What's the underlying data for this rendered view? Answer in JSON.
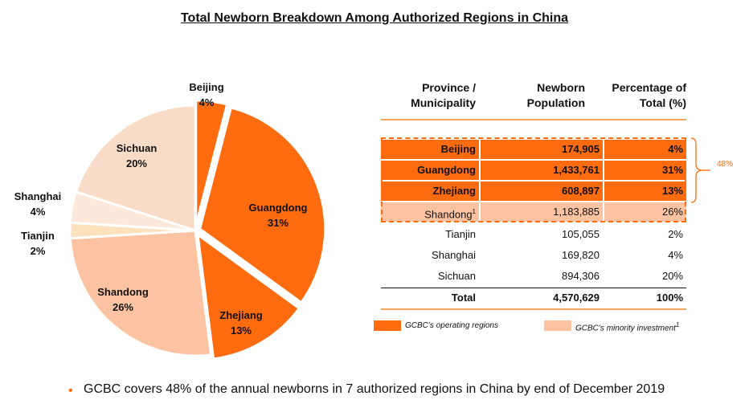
{
  "chart_data": [
    {
      "type": "pie",
      "title": "Total Newborn Breakdown Among Authorized Regions in China",
      "slices": [
        {
          "label": "Beijing",
          "value": 4,
          "value_label": "4%",
          "color": "#ff6b0f",
          "exploded": true
        },
        {
          "label": "Guangdong",
          "value": 31,
          "value_label": "31%",
          "color": "#ff6b0f",
          "exploded": true
        },
        {
          "label": "Zhejiang",
          "value": 13,
          "value_label": "13%",
          "color": "#ff6b0f",
          "exploded": true
        },
        {
          "label": "Shandong",
          "value": 26,
          "value_label": "26%",
          "color": "#fbc3a1",
          "exploded": false
        },
        {
          "label": "Tianjin",
          "value": 2,
          "value_label": "2%",
          "color": "#fbe1bc",
          "exploded": false
        },
        {
          "label": "Shanghai",
          "value": 4,
          "value_label": "4%",
          "color": "#fde9db",
          "exploded": false
        },
        {
          "label": "Sichuan",
          "value": 20,
          "value_label": "20%",
          "color": "#f9dcc8",
          "exploded": false
        }
      ]
    },
    {
      "type": "table",
      "columns": [
        "Province / Municipality",
        "Newborn Population",
        "Percentage of Total (%)"
      ],
      "rows": [
        {
          "region": "Beijing",
          "population": "174,905",
          "pct": "4%",
          "group": "operating"
        },
        {
          "region": "Guangdong",
          "population": "1,433,761",
          "pct": "31%",
          "group": "operating"
        },
        {
          "region": "Zhejiang",
          "population": "608,897",
          "pct": "13%",
          "group": "operating"
        },
        {
          "region": "Shandong",
          "sup": "1",
          "population": "1,183,885",
          "pct": "26%",
          "group": "minority"
        },
        {
          "region": "Tianjin",
          "population": "105,055",
          "pct": "2%",
          "group": "other"
        },
        {
          "region": "Shanghai",
          "population": "169,820",
          "pct": "4%",
          "group": "other"
        },
        {
          "region": "Sichuan",
          "population": "894,306",
          "pct": "20%",
          "group": "other"
        }
      ],
      "total": {
        "label": "Total",
        "population": "4,570,629",
        "pct": "100%"
      },
      "bracket_label": "48%"
    }
  ],
  "table_header": {
    "c1_line1": "Province /",
    "c1_line2": "Municipality",
    "c2_line1": "Newborn",
    "c2_line2": "Population",
    "c3_line1": "Percentage of",
    "c3_line2": "Total (%)"
  },
  "legend": {
    "operating": "GCBC’s operating regions",
    "minority": "GCBC’s minority investment",
    "minority_sup": "1",
    "operating_color": "#ff6b0f",
    "minority_color": "#fbc3a1"
  },
  "footnote": "GCBC covers 48% of the annual newborns in 7 authorized regions in China by end of December 2019",
  "bullet": "•"
}
